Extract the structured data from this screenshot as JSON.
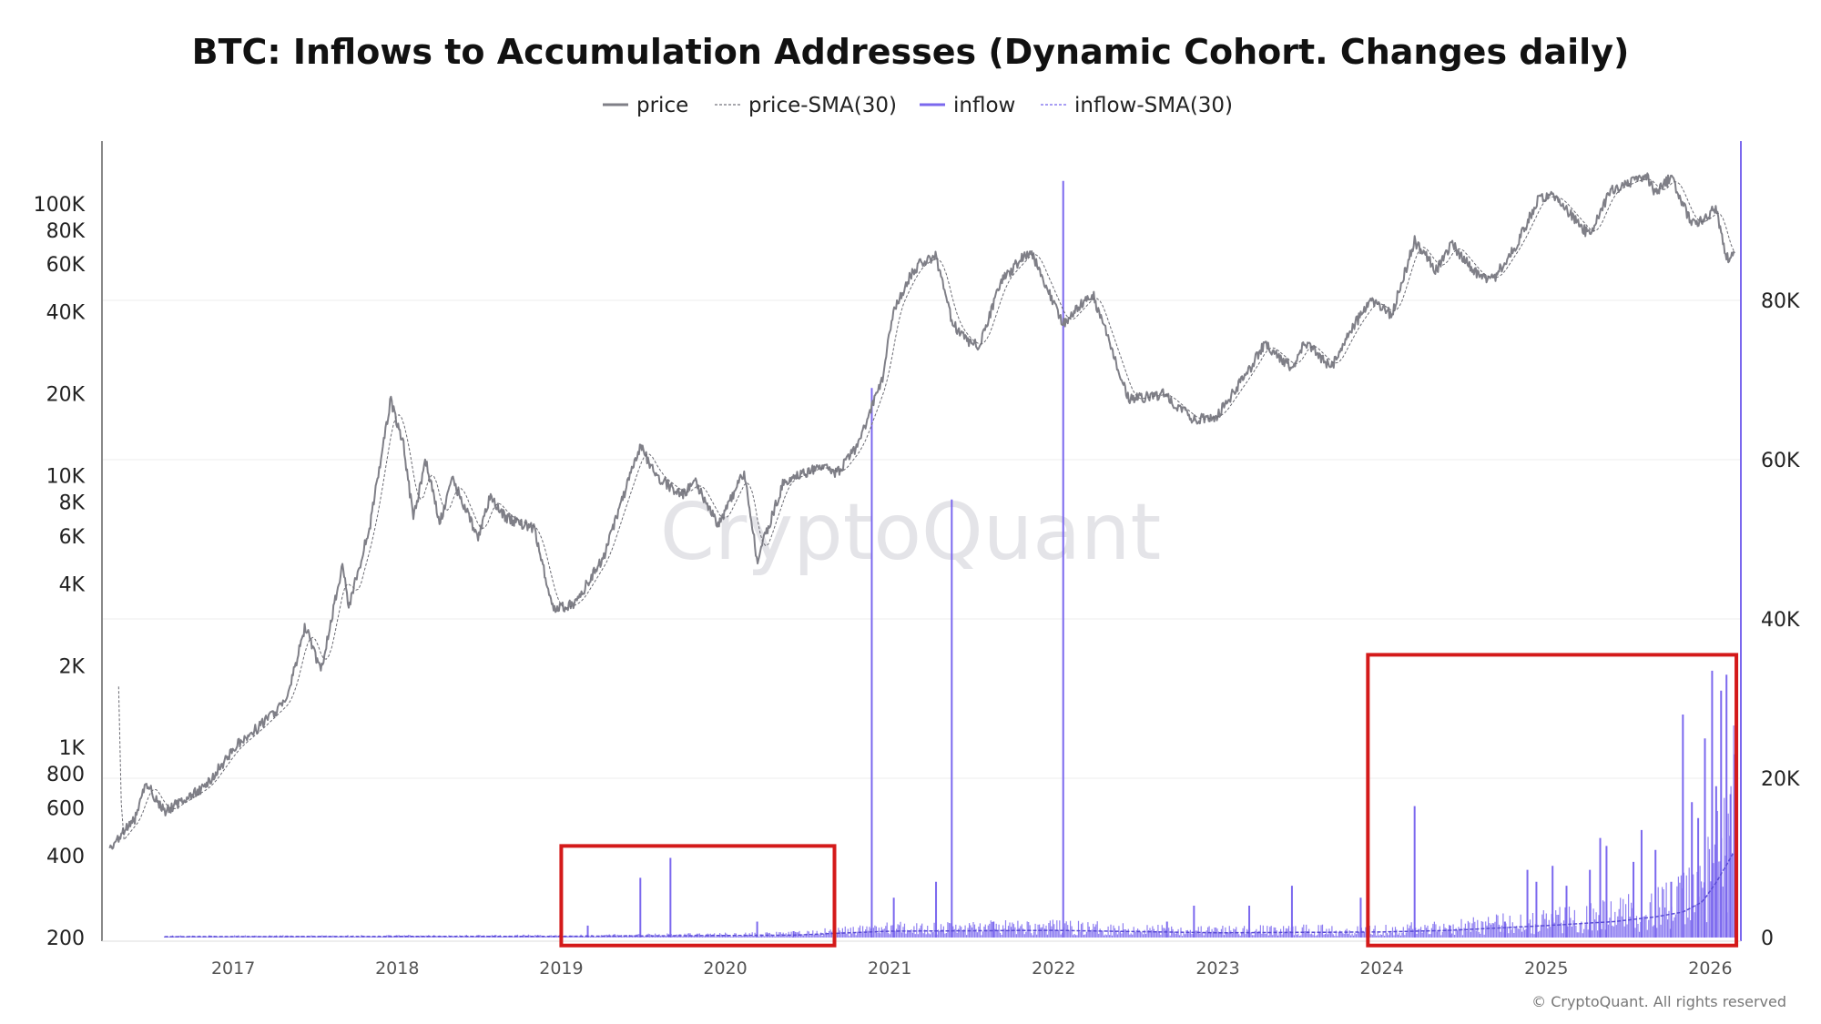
{
  "chart_data": {
    "type": "line",
    "title": "BTC: Inflows to Accumulation Addresses (Dynamic Cohort. Changes daily)",
    "legend": [
      {
        "name": "price",
        "color": "#7f7f87",
        "style": "solid"
      },
      {
        "name": "price-SMA(30)",
        "color": "#8a8a92",
        "style": "dashed"
      },
      {
        "name": "inflow",
        "color": "#7b68ee",
        "style": "solid"
      },
      {
        "name": "inflow-SMA(30)",
        "color": "#8b7ff0",
        "style": "dashed"
      }
    ],
    "legend_placement": "top-center",
    "x_axis": {
      "type": "date",
      "range": [
        "2016-03-15",
        "2026-03-10"
      ],
      "tick_labels": [
        "2017",
        "2018",
        "2019",
        "2020",
        "2021",
        "2022",
        "2023",
        "2024",
        "2025",
        "2026"
      ]
    },
    "y_left": {
      "scale": "log",
      "range": [
        200,
        170000
      ],
      "tick_labels": [
        "200",
        "400",
        "600",
        "800",
        "1K",
        "2K",
        "4K",
        "6K",
        "8K",
        "10K",
        "20K",
        "40K",
        "60K",
        "80K",
        "100K"
      ],
      "tick_values": [
        200,
        400,
        600,
        800,
        1000,
        2000,
        4000,
        6000,
        8000,
        10000,
        20000,
        40000,
        60000,
        80000,
        100000
      ]
    },
    "y_right": {
      "scale": "linear",
      "range": [
        0,
        100000
      ],
      "tick_labels": [
        "0",
        "20K",
        "40K",
        "60K",
        "80K"
      ],
      "tick_values": [
        0,
        20000,
        40000,
        60000,
        80000
      ]
    },
    "grid": "horizontal",
    "series": [
      {
        "name": "price",
        "axis": "left",
        "points": [
          [
            "2016-04-01",
            420
          ],
          [
            "2016-06-01",
            560
          ],
          [
            "2016-06-20",
            750
          ],
          [
            "2016-08-01",
            580
          ],
          [
            "2016-11-01",
            720
          ],
          [
            "2017-01-01",
            990
          ],
          [
            "2017-03-01",
            1200
          ],
          [
            "2017-05-01",
            1500
          ],
          [
            "2017-06-10",
            2800
          ],
          [
            "2017-07-15",
            1900
          ],
          [
            "2017-09-01",
            4700
          ],
          [
            "2017-09-15",
            3300
          ],
          [
            "2017-11-01",
            6500
          ],
          [
            "2017-12-17",
            19000
          ],
          [
            "2018-01-15",
            13000
          ],
          [
            "2018-02-06",
            6900
          ],
          [
            "2018-03-05",
            11500
          ],
          [
            "2018-04-05",
            6700
          ],
          [
            "2018-05-05",
            9700
          ],
          [
            "2018-06-29",
            5900
          ],
          [
            "2018-07-25",
            8300
          ],
          [
            "2018-09-01",
            7000
          ],
          [
            "2018-11-01",
            6400
          ],
          [
            "2018-12-15",
            3200
          ],
          [
            "2019-02-01",
            3400
          ],
          [
            "2019-04-05",
            5000
          ],
          [
            "2019-05-15",
            8000
          ],
          [
            "2019-06-26",
            12800
          ],
          [
            "2019-08-01",
            10000
          ],
          [
            "2019-09-25",
            8500
          ],
          [
            "2019-10-26",
            9500
          ],
          [
            "2019-12-17",
            6600
          ],
          [
            "2020-02-12",
            10300
          ],
          [
            "2020-03-12",
            4900
          ],
          [
            "2020-05-10",
            9500
          ],
          [
            "2020-07-27",
            10800
          ],
          [
            "2020-09-05",
            10200
          ],
          [
            "2020-10-21",
            12800
          ],
          [
            "2020-12-17",
            23000
          ],
          [
            "2021-01-08",
            40000
          ],
          [
            "2021-02-20",
            56000
          ],
          [
            "2021-03-13",
            61000
          ],
          [
            "2021-04-14",
            64000
          ],
          [
            "2021-05-19",
            37000
          ],
          [
            "2021-06-22",
            31000
          ],
          [
            "2021-07-20",
            30000
          ],
          [
            "2021-09-06",
            52000
          ],
          [
            "2021-11-10",
            68000
          ],
          [
            "2022-01-22",
            36000
          ],
          [
            "2022-03-28",
            47000
          ],
          [
            "2022-06-18",
            19000
          ],
          [
            "2022-09-01",
            20000
          ],
          [
            "2022-11-09",
            16000
          ],
          [
            "2022-12-31",
            16600
          ],
          [
            "2023-03-15",
            25000
          ],
          [
            "2023-04-14",
            30500
          ],
          [
            "2023-06-15",
            25000
          ],
          [
            "2023-07-15",
            31000
          ],
          [
            "2023-09-11",
            25000
          ],
          [
            "2023-10-25",
            34500
          ],
          [
            "2023-12-08",
            44000
          ],
          [
            "2024-01-23",
            39000
          ],
          [
            "2024-03-14",
            73000
          ],
          [
            "2024-05-01",
            57000
          ],
          [
            "2024-06-05",
            71000
          ],
          [
            "2024-08-05",
            54000
          ],
          [
            "2024-09-06",
            53000
          ],
          [
            "2024-10-29",
            72000
          ],
          [
            "2024-12-17",
            106000
          ],
          [
            "2025-01-21",
            106000
          ],
          [
            "2025-04-08",
            76000
          ],
          [
            "2025-05-22",
            111000
          ],
          [
            "2025-07-14",
            122000
          ],
          [
            "2025-08-14",
            124000
          ],
          [
            "2025-09-01",
            108000
          ],
          [
            "2025-10-06",
            126000
          ],
          [
            "2025-11-21",
            84000
          ],
          [
            "2025-12-20",
            88000
          ],
          [
            "2026-01-14",
            97000
          ],
          [
            "2026-02-06",
            63000
          ],
          [
            "2026-02-25",
            66000
          ]
        ]
      },
      {
        "name": "inflow",
        "axis": "right",
        "spikes": [
          [
            "2019-03-01",
            1500
          ],
          [
            "2019-06-26",
            7500
          ],
          [
            "2019-09-01",
            10000
          ],
          [
            "2020-03-12",
            2000
          ],
          [
            "2020-06-01",
            800
          ],
          [
            "2020-11-22",
            69000
          ],
          [
            "2021-01-10",
            5000
          ],
          [
            "2021-04-14",
            7000
          ],
          [
            "2021-05-19",
            55000
          ],
          [
            "2021-08-20",
            2000
          ],
          [
            "2022-01-22",
            95000
          ],
          [
            "2022-09-10",
            2000
          ],
          [
            "2022-11-09",
            4000
          ],
          [
            "2023-03-12",
            4000
          ],
          [
            "2023-06-15",
            6500
          ],
          [
            "2023-11-15",
            5000
          ],
          [
            "2024-03-14",
            16500
          ],
          [
            "2024-06-01",
            1500
          ],
          [
            "2024-10-01",
            2000
          ],
          [
            "2024-11-20",
            8500
          ],
          [
            "2024-12-10",
            7000
          ],
          [
            "2025-01-15",
            9000
          ],
          [
            "2025-02-15",
            6500
          ],
          [
            "2025-04-08",
            8500
          ],
          [
            "2025-05-01",
            12500
          ],
          [
            "2025-05-15",
            11500
          ],
          [
            "2025-07-14",
            9500
          ],
          [
            "2025-08-01",
            13500
          ],
          [
            "2025-09-01",
            11000
          ],
          [
            "2025-10-06",
            7000
          ],
          [
            "2025-11-01",
            28000
          ],
          [
            "2025-11-21",
            17000
          ],
          [
            "2025-12-05",
            15000
          ],
          [
            "2025-12-20",
            25000
          ],
          [
            "2026-01-05",
            33500
          ],
          [
            "2026-01-14",
            19000
          ],
          [
            "2026-01-25",
            31000
          ],
          [
            "2026-02-06",
            33000
          ],
          [
            "2026-02-15",
            18000
          ],
          [
            "2026-02-25",
            23000
          ]
        ]
      },
      {
        "name": "inflow-SMA(30)",
        "axis": "right",
        "points": [
          [
            "2016-04-01",
            100
          ],
          [
            "2019-01-01",
            150
          ],
          [
            "2020-06-01",
            300
          ],
          [
            "2021-01-01",
            800
          ],
          [
            "2022-01-01",
            900
          ],
          [
            "2023-01-01",
            600
          ],
          [
            "2024-01-01",
            700
          ],
          [
            "2024-06-01",
            900
          ],
          [
            "2025-01-01",
            1500
          ],
          [
            "2025-06-01",
            2000
          ],
          [
            "2025-09-01",
            2600
          ],
          [
            "2025-11-01",
            3200
          ],
          [
            "2025-12-15",
            4500
          ],
          [
            "2026-01-15",
            7000
          ],
          [
            "2026-02-10",
            9500
          ],
          [
            "2026-02-25",
            11000
          ]
        ]
      }
    ],
    "annotations": [
      {
        "type": "box",
        "color": "#d41a1a",
        "x_range": [
          "2019-01-01",
          "2020-08-31"
        ],
        "y_range_right": [
          -1000,
          11500
        ]
      },
      {
        "type": "box",
        "color": "#d41a1a",
        "x_range": [
          "2023-12-01",
          "2026-02-28"
        ],
        "y_range_right": [
          -1000,
          35500
        ]
      }
    ],
    "watermark": "CryptoQuant",
    "credit": "© CryptoQuant. All rights reserved"
  }
}
